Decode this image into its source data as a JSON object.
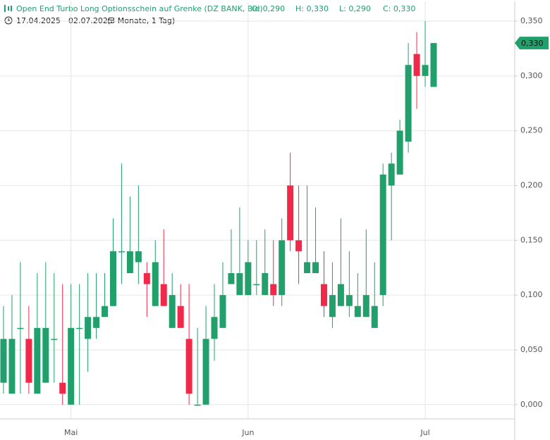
{
  "header": {
    "title": "Open End Turbo Long Optionsschein auf Grenke (DZ BANK, Bid)",
    "ohlc": [
      "O: 0,290",
      "H: 0,330",
      "L: 0,290",
      "C: 0,330"
    ],
    "range": "17.04.2025 - 02.07.2025",
    "period": "(3 Monate, 1 Tag)"
  },
  "chart_data": {
    "type": "candlestick",
    "categories": [
      null,
      null,
      null,
      null,
      null,
      null,
      null,
      null,
      "Mai",
      null,
      null,
      null,
      null,
      null,
      null,
      null,
      null,
      null,
      null,
      null,
      null,
      null,
      null,
      null,
      null,
      null,
      null,
      null,
      null,
      "Jun",
      null,
      null,
      null,
      null,
      null,
      null,
      null,
      null,
      null,
      null,
      null,
      null,
      null,
      null,
      null,
      null,
      null,
      null,
      null,
      null,
      "Jul",
      null
    ],
    "open": [
      0.02,
      0.01,
      0.07,
      0.06,
      0.01,
      0.02,
      0.06,
      0.02,
      0.0,
      0.07,
      0.06,
      0.07,
      0.08,
      0.09,
      0.14,
      0.12,
      0.13,
      0.12,
      0.09,
      0.11,
      0.07,
      0.09,
      0.06,
      0.0,
      0.0,
      0.06,
      0.07,
      0.11,
      0.1,
      0.1,
      0.11,
      0.1,
      0.11,
      0.1,
      0.2,
      0.15,
      0.12,
      0.12,
      0.11,
      0.08,
      0.09,
      0.09,
      0.08,
      0.08,
      0.07,
      0.1,
      0.2,
      0.21,
      0.24,
      0.32,
      0.3,
      0.29
    ],
    "high": [
      0.09,
      0.1,
      0.13,
      0.09,
      0.12,
      0.13,
      0.12,
      0.11,
      0.11,
      0.11,
      0.12,
      0.12,
      0.12,
      0.17,
      0.22,
      0.19,
      0.2,
      0.13,
      0.15,
      0.16,
      0.12,
      0.11,
      0.11,
      0.07,
      0.09,
      0.11,
      0.13,
      0.16,
      0.18,
      0.15,
      0.15,
      0.16,
      0.15,
      0.17,
      0.23,
      0.2,
      0.2,
      0.18,
      0.14,
      0.13,
      0.17,
      0.14,
      0.12,
      0.16,
      0.13,
      0.22,
      0.23,
      0.26,
      0.33,
      0.34,
      0.35,
      0.33
    ],
    "low": [
      0.01,
      0.01,
      0.01,
      0.01,
      0.01,
      0.02,
      0.02,
      0.0,
      0.0,
      0.0,
      0.03,
      0.06,
      0.08,
      0.09,
      0.11,
      0.12,
      0.11,
      0.08,
      0.09,
      0.09,
      0.07,
      0.07,
      0.0,
      0.0,
      0.0,
      0.04,
      0.07,
      0.11,
      0.1,
      0.1,
      0.1,
      0.1,
      0.09,
      0.09,
      0.14,
      0.11,
      0.12,
      0.12,
      0.08,
      0.07,
      0.09,
      0.08,
      0.08,
      0.08,
      0.07,
      0.09,
      0.15,
      0.21,
      0.23,
      0.27,
      0.29,
      0.29
    ],
    "close": [
      0.06,
      0.06,
      0.07,
      0.02,
      0.07,
      0.07,
      0.06,
      0.01,
      0.07,
      0.07,
      0.08,
      0.08,
      0.09,
      0.14,
      0.14,
      0.14,
      0.14,
      0.11,
      0.13,
      0.09,
      0.1,
      0.07,
      0.01,
      0.0,
      0.06,
      0.08,
      0.1,
      0.12,
      0.12,
      0.13,
      0.11,
      0.12,
      0.1,
      0.15,
      0.15,
      0.14,
      0.13,
      0.13,
      0.09,
      0.1,
      0.11,
      0.1,
      0.09,
      0.1,
      0.09,
      0.21,
      0.22,
      0.25,
      0.31,
      0.3,
      0.31,
      0.33
    ],
    "up_color": "#22a06b",
    "down_color": "#f0284a",
    "ylim": [
      -0.013,
      0.368
    ],
    "yticks": [
      {
        "value": 0,
        "label": "0,000"
      },
      {
        "value": 0.05,
        "label": "0,050"
      },
      {
        "value": 0.1,
        "label": "0,100"
      },
      {
        "value": 0.15,
        "label": "0,150"
      },
      {
        "value": 0.2,
        "label": "0,200"
      },
      {
        "value": 0.25,
        "label": "0,250"
      },
      {
        "value": 0.3,
        "label": "0,300"
      },
      {
        "value": 0.35,
        "label": "0,350"
      }
    ],
    "last_price": {
      "value": 0.33,
      "label": "0,330"
    },
    "grid": true
  }
}
